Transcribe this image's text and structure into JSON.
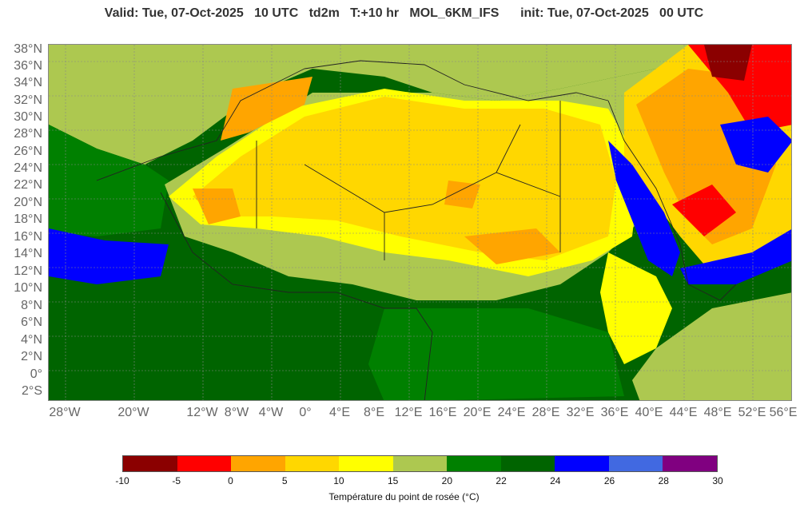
{
  "title": "Valid: Tue, 07-Oct-2025   10 UTC   td2m   T:+10 hr   MOL_6KM_IFS      init: Tue, 07-Oct-2025   00 UTC",
  "lat_labels": [
    "38°N",
    "36°N",
    "34°N",
    "32°N",
    "30°N",
    "28°N",
    "26°N",
    "24°N",
    "22°N",
    "20°N",
    "18°N",
    "16°N",
    "14°N",
    "12°N",
    "10°N",
    "8°N",
    "6°N",
    "4°N",
    "2°N",
    "0°",
    "2°S"
  ],
  "lon_labels": [
    "28°W",
    "20°W",
    "12°W",
    "8°W",
    "4°W",
    "0°",
    "4°E",
    "8°E",
    "12°E",
    "16°E",
    "20°E",
    "24°E",
    "28°E",
    "32°E",
    "36°E",
    "40°E",
    "44°E",
    "48°E",
    "52°E",
    "56°E"
  ],
  "colorbar": {
    "ticks": [
      "-10",
      "-5",
      "0",
      "5",
      "10",
      "15",
      "20",
      "22",
      "24",
      "26",
      "28",
      "30"
    ],
    "colors": [
      "#8b0000",
      "#ff0000",
      "#ffa500",
      "#ffd700",
      "#ffff00",
      "#adc850",
      "#008000",
      "#006400",
      "#0000ff",
      "#4169e1",
      "#800080"
    ],
    "title": "Température du point de rosée (°C)"
  },
  "map": {
    "variable": "2m dew point temperature",
    "region": "North Africa and Arabian Peninsula",
    "lat_range": [
      -3,
      38
    ],
    "lon_range": [
      -30,
      57
    ]
  }
}
